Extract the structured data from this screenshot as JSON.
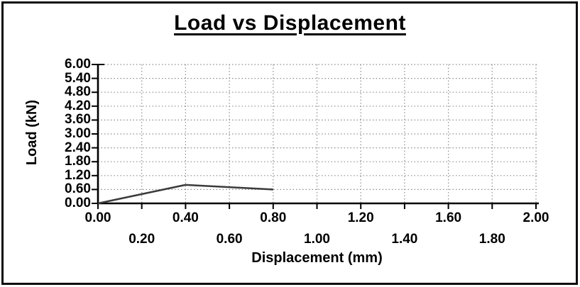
{
  "chart_data": {
    "type": "line",
    "title": "Load vs Displacement",
    "xlabel": "Displacement (mm)",
    "ylabel": "Load (kN)",
    "xlim": [
      0.0,
      2.0
    ],
    "ylim": [
      0.0,
      6.0
    ],
    "x_ticks": [
      "0.00",
      "0.20",
      "0.40",
      "0.60",
      "0.80",
      "1.00",
      "1.20",
      "1.40",
      "1.60",
      "1.80",
      "2.00"
    ],
    "y_ticks": [
      "0.00",
      "0.60",
      "1.20",
      "1.80",
      "2.40",
      "3.00",
      "3.60",
      "4.20",
      "4.80",
      "5.40",
      "6.00"
    ],
    "grid": true,
    "legend_position": "none",
    "series": [
      {
        "name": "Load",
        "color": "#3b3b3b",
        "points": [
          [
            0.0,
            0.0
          ],
          [
            0.4,
            0.8
          ],
          [
            0.6,
            0.7
          ],
          [
            0.8,
            0.6
          ]
        ]
      }
    ],
    "colors": {
      "axis": "#000000",
      "gridline": "#8c8c8c",
      "background": "#ffffff",
      "text": "#000000"
    }
  }
}
